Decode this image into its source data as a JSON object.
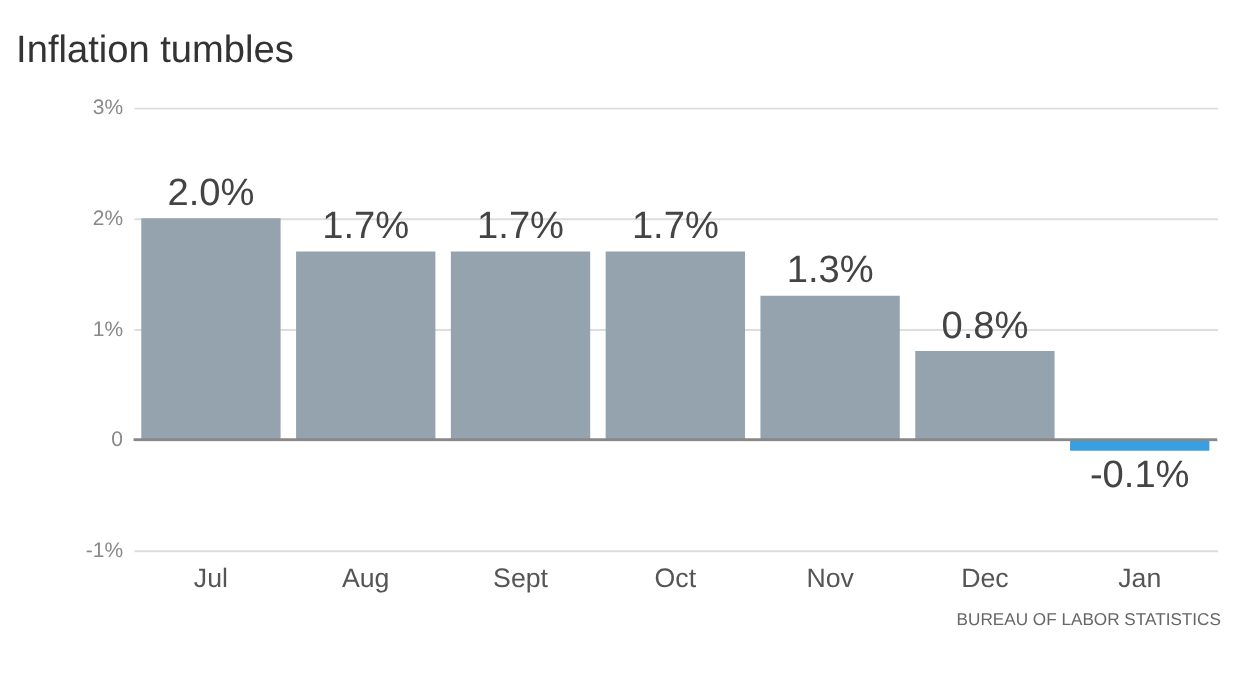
{
  "chart_data": {
    "type": "bar",
    "title": "Inflation tumbles",
    "categories": [
      "Jul",
      "Aug",
      "Sept",
      "Oct",
      "Nov",
      "Dec",
      "Jan"
    ],
    "values": [
      2.0,
      1.7,
      1.7,
      1.7,
      1.3,
      0.8,
      -0.1
    ],
    "value_labels": [
      "2.0%",
      "1.7%",
      "1.7%",
      "1.7%",
      "1.3%",
      "0.8%",
      "-0.1%"
    ],
    "colors": [
      "#95a3ae",
      "#95a3ae",
      "#95a3ae",
      "#95a3ae",
      "#95a3ae",
      "#95a3ae",
      "#3a9fe0"
    ],
    "ylim": [
      -1,
      3
    ],
    "yticks": [
      {
        "value": -1,
        "label": "-1%"
      },
      0,
      {
        "value": 1,
        "label": "1%"
      },
      {
        "value": 2,
        "label": "2%"
      },
      {
        "value": 3,
        "label": "3%"
      }
    ],
    "grid": "y",
    "ref_lines": [
      {
        "axis": "y",
        "value": 0,
        "color": "#888888"
      }
    ],
    "annotations": [
      "BUREAU OF LABOR STATISTICS"
    ]
  }
}
